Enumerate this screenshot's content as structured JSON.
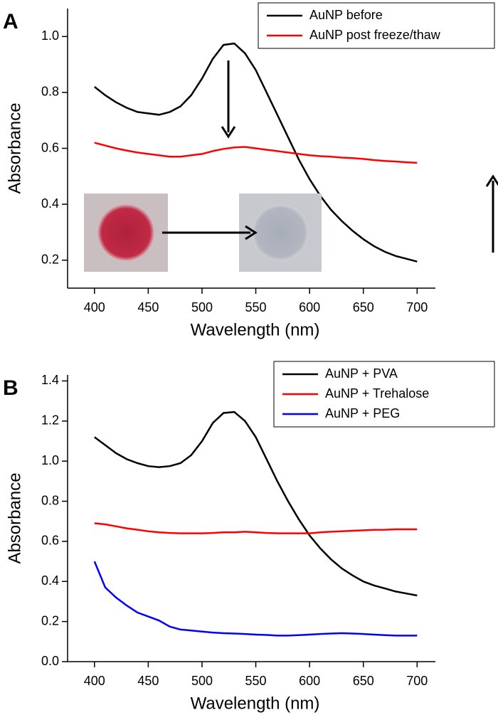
{
  "chart_data": [
    {
      "type": "line",
      "label": "A",
      "xlabel": "Wavelength (nm)",
      "ylabel": "Absorbance",
      "x": [
        400,
        410,
        420,
        430,
        440,
        450,
        460,
        470,
        480,
        490,
        500,
        510,
        520,
        530,
        540,
        550,
        560,
        570,
        580,
        590,
        600,
        610,
        620,
        630,
        640,
        650,
        660,
        670,
        680,
        690,
        700
      ],
      "series": [
        {
          "name": "AuNP before",
          "color": "#000000",
          "values": [
            0.82,
            0.79,
            0.765,
            0.745,
            0.73,
            0.725,
            0.72,
            0.73,
            0.75,
            0.79,
            0.85,
            0.92,
            0.97,
            0.975,
            0.94,
            0.88,
            0.8,
            0.72,
            0.64,
            0.56,
            0.49,
            0.43,
            0.38,
            0.34,
            0.305,
            0.275,
            0.25,
            0.23,
            0.215,
            0.205,
            0.195
          ]
        },
        {
          "name": "AuNP post freeze/thaw",
          "color": "#ff0000",
          "values": [
            0.62,
            0.61,
            0.6,
            0.592,
            0.585,
            0.58,
            0.575,
            0.57,
            0.57,
            0.575,
            0.58,
            0.59,
            0.598,
            0.603,
            0.605,
            0.6,
            0.595,
            0.59,
            0.585,
            0.58,
            0.575,
            0.572,
            0.57,
            0.567,
            0.565,
            0.562,
            0.558,
            0.555,
            0.553,
            0.55,
            0.548
          ]
        }
      ],
      "xlim": [
        375,
        717
      ],
      "xticks": [
        400,
        450,
        500,
        550,
        600,
        650,
        700
      ],
      "ylim": [
        0.1,
        1.1
      ],
      "yticks": [
        0.2,
        0.4,
        0.6,
        0.8,
        {
          "value": 1,
          "label": "1.0"
        }
      ],
      "legend": "upper right"
    },
    {
      "type": "line",
      "label": "B",
      "xlabel": "Wavelength (nm)",
      "ylabel": "Absorbance",
      "x": [
        400,
        410,
        420,
        430,
        440,
        450,
        460,
        470,
        480,
        490,
        500,
        510,
        520,
        530,
        540,
        550,
        560,
        570,
        580,
        590,
        600,
        610,
        620,
        630,
        640,
        650,
        660,
        670,
        680,
        690,
        700
      ],
      "series": [
        {
          "name": "AuNP + PVA",
          "color": "#000000",
          "values": [
            1.12,
            1.08,
            1.04,
            1.01,
            0.99,
            0.975,
            0.97,
            0.975,
            0.99,
            1.03,
            1.1,
            1.19,
            1.24,
            1.245,
            1.2,
            1.12,
            1.01,
            0.9,
            0.8,
            0.71,
            0.63,
            0.565,
            0.51,
            0.465,
            0.43,
            0.4,
            0.38,
            0.365,
            0.35,
            0.34,
            0.33
          ]
        },
        {
          "name": "AuNP + Trehalose",
          "color": "#ff0000",
          "values": [
            0.69,
            0.685,
            0.675,
            0.665,
            0.658,
            0.65,
            0.645,
            0.642,
            0.64,
            0.64,
            0.64,
            0.642,
            0.645,
            0.645,
            0.648,
            0.645,
            0.642,
            0.64,
            0.64,
            0.64,
            0.64,
            0.645,
            0.648,
            0.65,
            0.653,
            0.655,
            0.657,
            0.658,
            0.66,
            0.66,
            0.66
          ]
        },
        {
          "name": "AuNP + PEG",
          "color": "#0000ff",
          "values": [
            0.5,
            0.37,
            0.32,
            0.28,
            0.245,
            0.225,
            0.205,
            0.175,
            0.16,
            0.155,
            0.15,
            0.145,
            0.142,
            0.14,
            0.138,
            0.135,
            0.133,
            0.13,
            0.13,
            0.132,
            0.135,
            0.138,
            0.14,
            0.142,
            0.14,
            0.138,
            0.135,
            0.132,
            0.13,
            0.13,
            0.13
          ]
        }
      ],
      "xlim": [
        375,
        717
      ],
      "xticks": [
        400,
        450,
        500,
        550,
        600,
        650,
        700
      ],
      "ylim": [
        0,
        1.43
      ],
      "yticks": [
        {
          "value": 0,
          "label": "0.0"
        },
        0.2,
        0.4,
        0.6,
        0.8,
        {
          "value": 1,
          "label": "1.0"
        },
        1.2,
        1.4
      ],
      "legend": "upper right"
    }
  ]
}
